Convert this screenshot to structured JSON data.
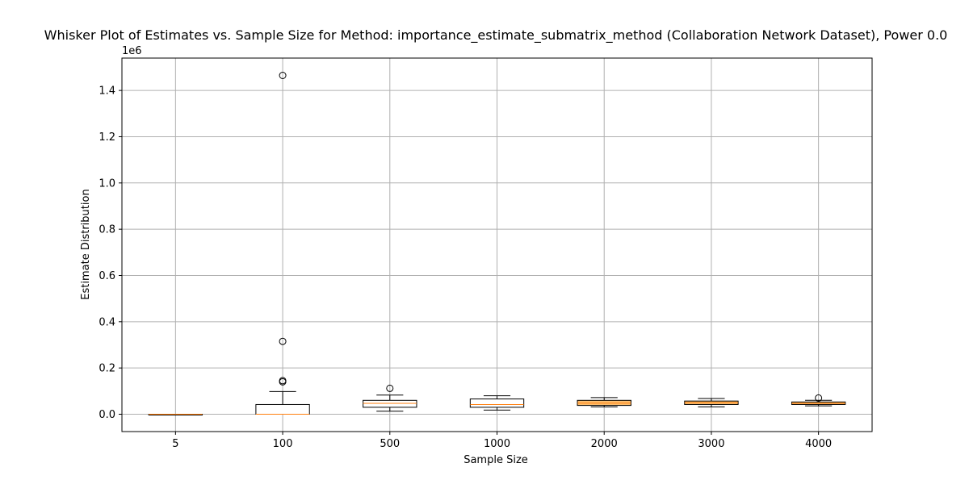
{
  "chart_data": {
    "type": "box",
    "title": "Whisker Plot of Estimates vs. Sample Size for Method: importance_estimate_submatrix_method (Collaboration Network Dataset), Power 0.0",
    "xlabel": "Sample Size",
    "ylabel": "Estimate Distribution",
    "y_offset_label": "1e6",
    "y_scale": 1000000,
    "ylim": [
      -75000,
      1540000
    ],
    "yticks": [
      0,
      200000,
      400000,
      600000,
      800000,
      1000000,
      1200000,
      1400000
    ],
    "ytick_labels": [
      "0.0",
      "0.2",
      "0.4",
      "0.6",
      "0.8",
      "1.0",
      "1.2",
      "1.4"
    ],
    "grid": true,
    "categories": [
      "5",
      "100",
      "500",
      "1000",
      "2000",
      "3000",
      "4000"
    ],
    "boxes": [
      {
        "category": "5",
        "whisker_low": 0,
        "q1": 0,
        "median": 0,
        "q3": 0,
        "whisker_high": 0,
        "outliers": []
      },
      {
        "category": "100",
        "whisker_low": 0,
        "q1": 0,
        "median": 0,
        "q3": 42000,
        "whisker_high": 98000,
        "outliers": [
          140000,
          145000,
          315000,
          1465000
        ]
      },
      {
        "category": "500",
        "whisker_low": 13000,
        "q1": 30000,
        "median": 47000,
        "q3": 60000,
        "whisker_high": 83000,
        "outliers": [
          112000
        ]
      },
      {
        "category": "1000",
        "whisker_low": 18000,
        "q1": 30000,
        "median": 42000,
        "q3": 66000,
        "whisker_high": 80000,
        "outliers": []
      },
      {
        "category": "2000",
        "whisker_low": 32000,
        "q1": 38000,
        "median": 48000,
        "q3": 60000,
        "whisker_high": 72000,
        "outliers": []
      },
      {
        "category": "3000",
        "whisker_low": 32000,
        "q1": 42000,
        "median": 50000,
        "q3": 57000,
        "whisker_high": 68000,
        "outliers": []
      },
      {
        "category": "4000",
        "whisker_low": 36000,
        "q1": 42000,
        "median": 47000,
        "q3": 53000,
        "whisker_high": 60000,
        "outliers": [
          70000
        ]
      }
    ],
    "colors": {
      "box": "#fdbf6f",
      "box_empty": "#ffffff",
      "median": "#ff7f0e",
      "edge": "#000000",
      "grid": "#b0b0b0"
    }
  }
}
